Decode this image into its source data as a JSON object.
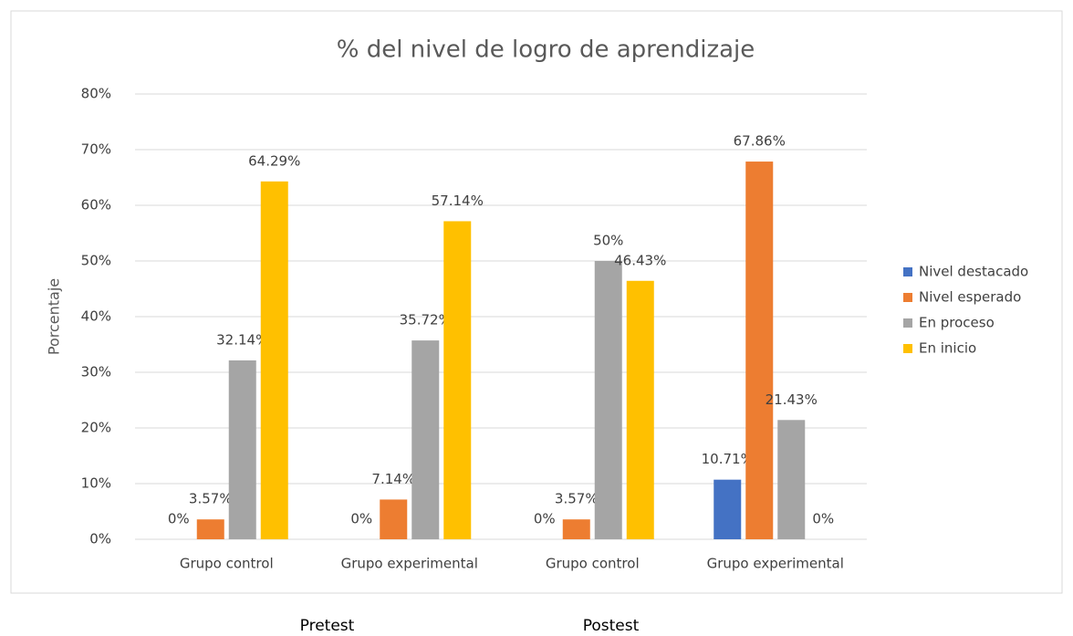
{
  "chart_data": {
    "type": "bar",
    "title": "% del nivel de logro de aprendizaje",
    "y_label": "Porcentaje",
    "categories": [
      "Grupo control",
      "Grupo experimental",
      "Grupo control",
      "Grupo experimental"
    ],
    "group_labels": [
      "Pretest",
      "Postest"
    ],
    "series": [
      {
        "name": "Nivel destacado",
        "color": "#4472c4",
        "values": [
          0,
          0,
          0,
          10.71
        ],
        "value_labels": [
          "0%",
          "0%",
          "0%",
          "10.71%"
        ]
      },
      {
        "name": "Nivel esperado",
        "color": "#ed7d31",
        "values": [
          3.57,
          7.14,
          3.57,
          67.86
        ],
        "value_labels": [
          "3.57%",
          "7.14%",
          "3.57%",
          "67.86%"
        ]
      },
      {
        "name": "En proceso",
        "color": "#a5a5a5",
        "values": [
          32.14,
          35.72,
          50,
          21.43
        ],
        "value_labels": [
          "32.14%",
          "35.72%",
          "50%",
          "21.43%"
        ]
      },
      {
        "name": "En inicio",
        "color": "#ffc000",
        "values": [
          64.29,
          57.14,
          46.43,
          0
        ],
        "value_labels": [
          "64.29%",
          "57.14%",
          "46.43%",
          "0%"
        ]
      }
    ],
    "ylim": [
      0,
      80
    ],
    "yticks": [
      {
        "value": 0,
        "label": "0%"
      },
      {
        "value": 10,
        "label": "10%"
      },
      {
        "value": 20,
        "label": "20%"
      },
      {
        "value": 30,
        "label": "30%"
      },
      {
        "value": 40,
        "label": "40%"
      },
      {
        "value": 50,
        "label": "50%"
      },
      {
        "value": 60,
        "label": "60%"
      },
      {
        "value": 70,
        "label": "70%"
      },
      {
        "value": 80,
        "label": "80%"
      }
    ],
    "grid": true,
    "legend": "right"
  }
}
